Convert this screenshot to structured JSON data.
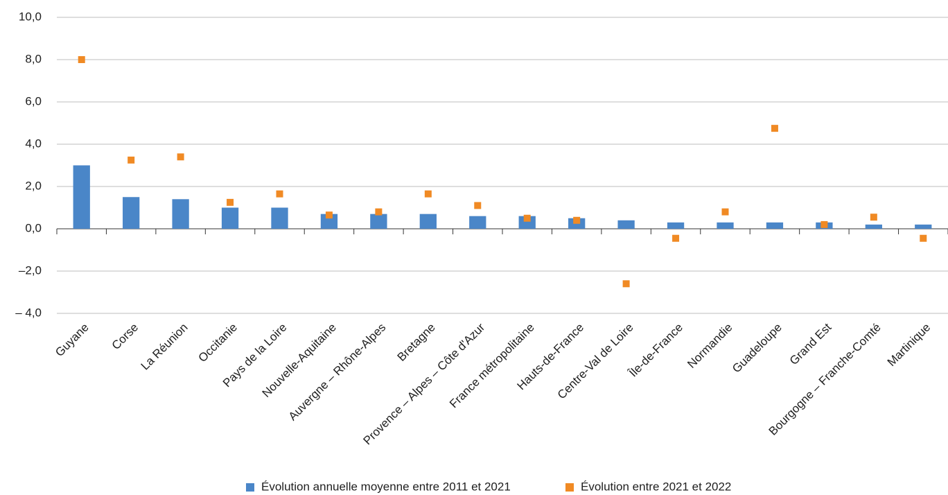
{
  "chart_data": {
    "type": "bar",
    "categories": [
      "Guyane",
      "Corse",
      "La Réunion",
      "Occitanie",
      "Pays de la Loire",
      "Nouvelle-Aquitaine",
      "Auvergne – Rhône-Alpes",
      "Bretagne",
      "Provence – Alpes – Côte d'Azur",
      "France métropolitaine",
      "Hauts-de-France",
      "Centre-Val de Loire",
      "Île-de-France",
      "Normandie",
      "Guadeloupe",
      "Grand Est",
      "Bourgogne – Franche-Comté",
      "Martinique"
    ],
    "series": [
      {
        "name": "Évolution annuelle moyenne entre 2011 et 2021",
        "type": "bar",
        "color": "#4a86c8",
        "values": [
          3.0,
          1.5,
          1.4,
          1.0,
          1.0,
          0.7,
          0.7,
          0.7,
          0.6,
          0.6,
          0.5,
          0.4,
          0.3,
          0.3,
          0.3,
          0.3,
          0.2,
          0.2
        ]
      },
      {
        "name": "Évolution entre 2021 et 2022",
        "type": "scatter",
        "color": "#f08a24",
        "values": [
          8.0,
          3.25,
          3.4,
          1.25,
          1.65,
          0.65,
          0.8,
          1.65,
          1.1,
          0.5,
          0.4,
          -2.6,
          -0.45,
          0.8,
          4.75,
          0.2,
          0.55,
          -0.45
        ]
      }
    ],
    "ylim": [
      -4,
      10
    ],
    "yticks": [
      {
        "value": -4,
        "label": "– 4,0"
      },
      {
        "value": -2,
        "label": "–2,0"
      },
      {
        "value": 0,
        "label": "0,0"
      },
      {
        "value": 2,
        "label": "2,0"
      },
      {
        "value": 4,
        "label": "4,0"
      },
      {
        "value": 6,
        "label": "6,0"
      },
      {
        "value": 8,
        "label": "8,0"
      },
      {
        "value": 10,
        "label": "10,0"
      }
    ],
    "grid": true,
    "legend": "bottom"
  }
}
